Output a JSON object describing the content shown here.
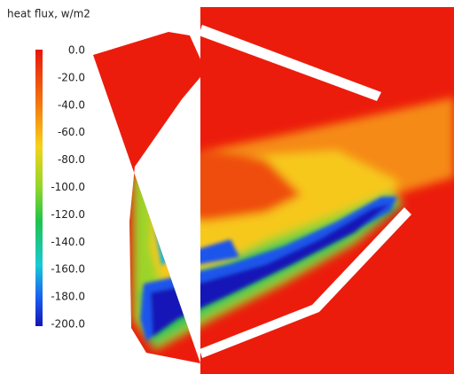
{
  "colorbar": {
    "title": "heat flux, w/m2",
    "ticks": [
      "0.0",
      "-20.0",
      "-40.0",
      "-60.0",
      "-80.0",
      "-100.0",
      "-120.0",
      "-140.0",
      "-160.0",
      "-180.0",
      "-200.0"
    ]
  }
}
